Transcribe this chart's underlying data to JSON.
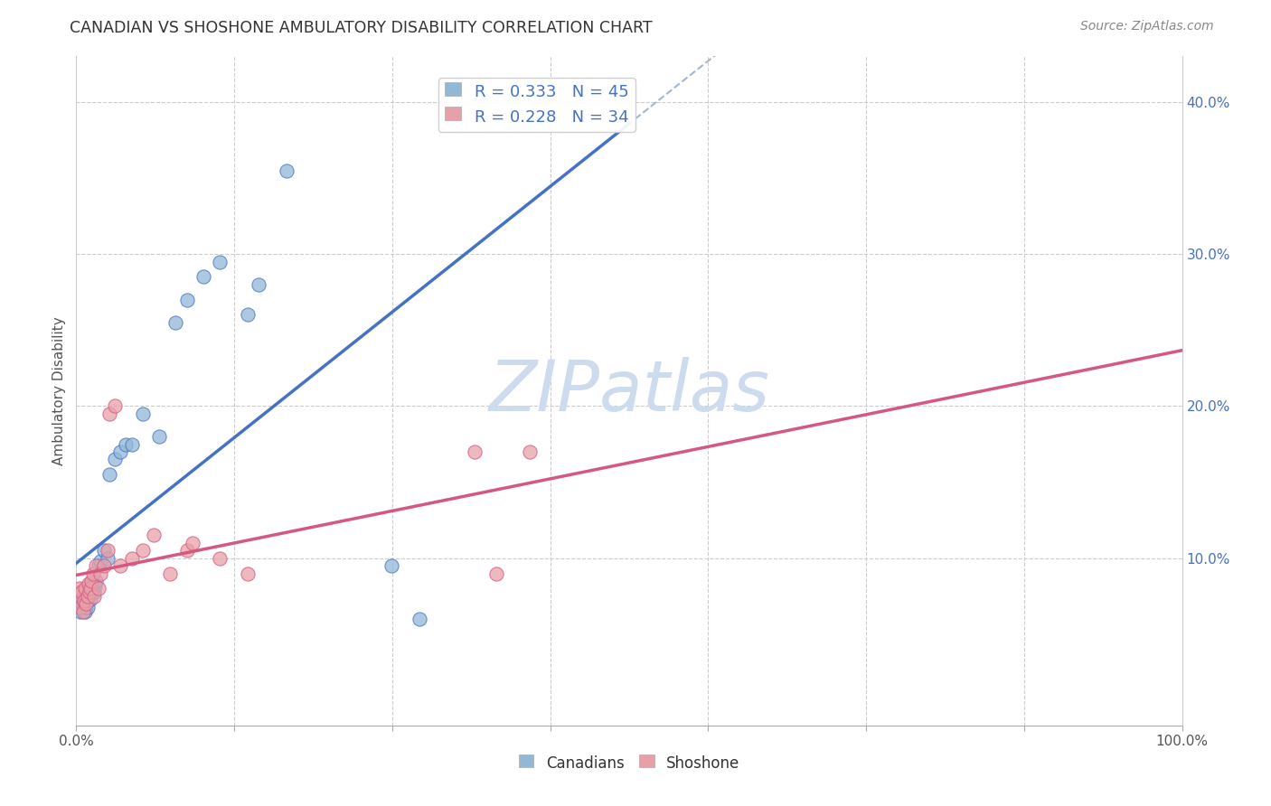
{
  "title": "CANADIAN VS SHOSHONE AMBULATORY DISABILITY CORRELATION CHART",
  "source": "Source: ZipAtlas.com",
  "ylabel": "Ambulatory Disability",
  "canadians_R": 0.333,
  "canadians_N": 45,
  "shoshone_R": 0.228,
  "shoshone_N": 34,
  "canadians_color": "#92b8d8",
  "shoshone_color": "#e8a0a8",
  "trend_canadians_color": "#4472c4",
  "trend_shoshone_color": "#d45880",
  "dashed_line_color": "#a0b8d0",
  "background_color": "#ffffff",
  "grid_color": "#cccccc",
  "watermark_color": "#ccdcee",
  "canadians_x": [
    0.002,
    0.003,
    0.004,
    0.005,
    0.005,
    0.006,
    0.006,
    0.007,
    0.007,
    0.008,
    0.008,
    0.009,
    0.009,
    0.01,
    0.01,
    0.011,
    0.011,
    0.012,
    0.012,
    0.013,
    0.014,
    0.015,
    0.016,
    0.017,
    0.018,
    0.02,
    0.022,
    0.025,
    0.028,
    0.03,
    0.035,
    0.04,
    0.045,
    0.05,
    0.06,
    0.075,
    0.09,
    0.1,
    0.115,
    0.13,
    0.155,
    0.165,
    0.19,
    0.285,
    0.31
  ],
  "canadians_y": [
    0.068,
    0.072,
    0.065,
    0.07,
    0.075,
    0.068,
    0.073,
    0.075,
    0.078,
    0.065,
    0.07,
    0.068,
    0.076,
    0.072,
    0.068,
    0.08,
    0.075,
    0.082,
    0.078,
    0.073,
    0.08,
    0.083,
    0.078,
    0.082,
    0.085,
    0.095,
    0.098,
    0.105,
    0.1,
    0.155,
    0.165,
    0.17,
    0.175,
    0.175,
    0.195,
    0.18,
    0.255,
    0.27,
    0.285,
    0.295,
    0.26,
    0.28,
    0.355,
    0.095,
    0.06
  ],
  "shoshone_x": [
    0.002,
    0.003,
    0.004,
    0.005,
    0.006,
    0.007,
    0.008,
    0.009,
    0.01,
    0.011,
    0.012,
    0.013,
    0.014,
    0.015,
    0.016,
    0.018,
    0.02,
    0.022,
    0.025,
    0.028,
    0.03,
    0.035,
    0.04,
    0.05,
    0.06,
    0.07,
    0.085,
    0.1,
    0.105,
    0.13,
    0.155,
    0.36,
    0.38,
    0.41
  ],
  "shoshone_y": [
    0.075,
    0.08,
    0.068,
    0.078,
    0.065,
    0.072,
    0.08,
    0.07,
    0.075,
    0.083,
    0.078,
    0.08,
    0.085,
    0.09,
    0.075,
    0.095,
    0.08,
    0.09,
    0.095,
    0.105,
    0.195,
    0.2,
    0.095,
    0.1,
    0.105,
    0.115,
    0.09,
    0.105,
    0.11,
    0.1,
    0.09,
    0.17,
    0.09,
    0.17
  ],
  "xlim": [
    0.0,
    1.0
  ],
  "ylim": [
    -0.01,
    0.43
  ],
  "ytick_positions": [
    0.0,
    0.1,
    0.2,
    0.3,
    0.4
  ],
  "ytick_labels": [
    "",
    "10.0%",
    "20.0%",
    "30.0%",
    "40.0%"
  ],
  "xtick_positions": [
    0.0,
    0.142857,
    0.285714,
    0.428571,
    0.571429,
    0.714286,
    0.857143,
    1.0
  ],
  "xtick_labels": [
    "0.0%",
    "",
    "",
    "",
    "",
    "",
    "",
    "100.0%"
  ]
}
